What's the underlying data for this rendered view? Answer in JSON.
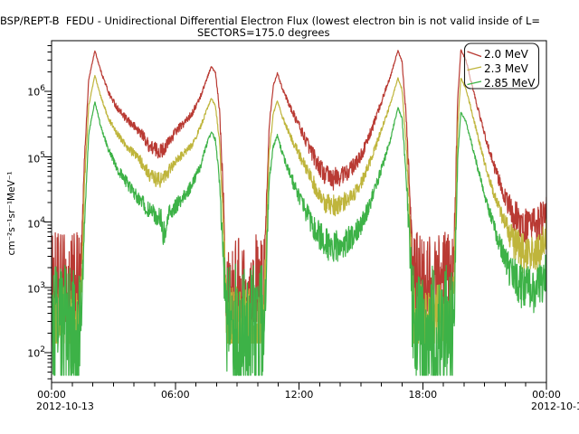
{
  "title": {
    "line1": "RBSP/REPT-B  FEDU - Unidirectional Differential Electron Flux (lowest electron bin is not valid inside of L=",
    "line2": "SECTORS=175.0 degrees"
  },
  "y_axis": {
    "unit_label": "cm⁻²s⁻¹sr⁻¹MeV⁻¹",
    "ticks": [
      {
        "base": "10",
        "exp": "6",
        "log": 6
      },
      {
        "base": "10",
        "exp": "5",
        "log": 5
      },
      {
        "base": "10",
        "exp": "4",
        "log": 4
      },
      {
        "base": "10",
        "exp": "3",
        "log": 3
      },
      {
        "base": "10",
        "exp": "2",
        "log": 2
      }
    ]
  },
  "x_axis": {
    "ticks": [
      {
        "label": "00:00",
        "hour": 0,
        "date": "2012-10-13"
      },
      {
        "label": "06:00",
        "hour": 6
      },
      {
        "label": "12:00",
        "hour": 12
      },
      {
        "label": "18:00",
        "hour": 18
      },
      {
        "label": "00:00",
        "hour": 24,
        "date": "2012-10-1"
      }
    ]
  },
  "legend": {
    "entries": [
      {
        "label": "2.0 MeV",
        "color": "#b93a33"
      },
      {
        "label": "2.3 MeV",
        "color": "#bfb53c"
      },
      {
        "label": "2.85 MeV",
        "color": "#3db247"
      }
    ]
  },
  "chart_data": {
    "type": "line",
    "title": "RBSP/REPT-B  FEDU - Unidirectional Differential Electron Flux (lowest electron bin is not valid inside of L=",
    "subtitle": "SECTORS=175.0 degrees",
    "ylabel": "cm⁻²s⁻¹sr⁻¹MeV⁻¹",
    "x_unit": "hours since 2012-10-13 00:00",
    "x_range": [
      0,
      24
    ],
    "x_major_ticks_hours": [
      0,
      6,
      12,
      18,
      24
    ],
    "x_minor_tick_step_hours": 1,
    "y_scale": "log10",
    "y_range": [
      35,
      6000000
    ],
    "y_decade_labels": [
      100,
      1000,
      10000,
      100000,
      1000000
    ],
    "grid": false,
    "legend_position": "top-right",
    "note": "keypoints are [time_hours, flux, noise_dex]; flux interpolated log-linearly between keypoints with +/- noise_dex jitter, clamped at series floor",
    "series": [
      {
        "name": "2.0 MeV",
        "color": "#b93a33",
        "floor": 300,
        "keypoints": [
          [
            0,
            700,
            1.0
          ],
          [
            1.35,
            700,
            1.0
          ],
          [
            1.45,
            3000,
            0.3
          ],
          [
            1.6,
            100000,
            0.06
          ],
          [
            1.8,
            1500000,
            0.02
          ],
          [
            2.1,
            4200000,
            0.01
          ],
          [
            2.4,
            2000000,
            0.02
          ],
          [
            2.8,
            900000,
            0.04
          ],
          [
            3.2,
            550000,
            0.05
          ],
          [
            3.6,
            380000,
            0.06
          ],
          [
            4.0,
            290000,
            0.07
          ],
          [
            4.4,
            220000,
            0.08
          ],
          [
            4.7,
            150000,
            0.1
          ],
          [
            5.0,
            130000,
            0.12
          ],
          [
            5.3,
            120000,
            0.12
          ],
          [
            5.6,
            150000,
            0.1
          ],
          [
            6.0,
            240000,
            0.07
          ],
          [
            6.4,
            320000,
            0.06
          ],
          [
            6.8,
            450000,
            0.05
          ],
          [
            7.2,
            800000,
            0.04
          ],
          [
            7.6,
            1800000,
            0.02
          ],
          [
            7.75,
            2400000,
            0.01
          ],
          [
            7.95,
            1900000,
            0.02
          ],
          [
            8.15,
            500000,
            0.05
          ],
          [
            8.35,
            20000,
            0.2
          ],
          [
            8.5,
            700,
            1.0
          ],
          [
            10.25,
            700,
            1.0
          ],
          [
            10.35,
            4000,
            0.3
          ],
          [
            10.55,
            300000,
            0.05
          ],
          [
            10.75,
            1200000,
            0.02
          ],
          [
            10.95,
            1900000,
            0.01
          ],
          [
            11.2,
            1100000,
            0.03
          ],
          [
            11.6,
            550000,
            0.05
          ],
          [
            12.0,
            300000,
            0.08
          ],
          [
            12.4,
            160000,
            0.1
          ],
          [
            12.8,
            90000,
            0.13
          ],
          [
            13.2,
            55000,
            0.16
          ],
          [
            13.6,
            45000,
            0.18
          ],
          [
            14.0,
            50000,
            0.15
          ],
          [
            14.4,
            60000,
            0.13
          ],
          [
            14.8,
            80000,
            0.11
          ],
          [
            15.2,
            140000,
            0.09
          ],
          [
            15.6,
            300000,
            0.07
          ],
          [
            16.0,
            700000,
            0.05
          ],
          [
            16.4,
            1600000,
            0.03
          ],
          [
            16.8,
            4200000,
            0.01
          ],
          [
            17.0,
            2800000,
            0.02
          ],
          [
            17.2,
            400000,
            0.05
          ],
          [
            17.4,
            20000,
            0.2
          ],
          [
            17.55,
            700,
            1.0
          ],
          [
            19.45,
            700,
            1.0
          ],
          [
            19.55,
            8000,
            0.3
          ],
          [
            19.7,
            800000,
            0.03
          ],
          [
            19.85,
            4300000,
            0.01
          ],
          [
            20.1,
            3000000,
            0.02
          ],
          [
            20.5,
            900000,
            0.03
          ],
          [
            21.0,
            220000,
            0.05
          ],
          [
            21.5,
            65000,
            0.08
          ],
          [
            22.0,
            24000,
            0.15
          ],
          [
            22.4,
            13000,
            0.25
          ],
          [
            22.9,
            8500,
            0.3
          ],
          [
            23.4,
            8000,
            0.3
          ],
          [
            23.8,
            11000,
            0.3
          ],
          [
            24,
            16000,
            0.28
          ]
        ]
      },
      {
        "name": "2.3 MeV",
        "color": "#bfb53c",
        "floor": 140,
        "keypoints": [
          [
            0,
            220,
            0.7
          ],
          [
            1.35,
            220,
            0.7
          ],
          [
            1.45,
            1200,
            0.3
          ],
          [
            1.6,
            40000,
            0.06
          ],
          [
            1.8,
            600000,
            0.02
          ],
          [
            2.1,
            1750000,
            0.01
          ],
          [
            2.4,
            800000,
            0.02
          ],
          [
            2.8,
            360000,
            0.04
          ],
          [
            3.2,
            220000,
            0.05
          ],
          [
            3.6,
            150000,
            0.06
          ],
          [
            4.0,
            110000,
            0.07
          ],
          [
            4.4,
            80000,
            0.09
          ],
          [
            4.7,
            55000,
            0.1
          ],
          [
            5.0,
            46000,
            0.12
          ],
          [
            5.3,
            43000,
            0.12
          ],
          [
            5.6,
            55000,
            0.1
          ],
          [
            6.0,
            85000,
            0.07
          ],
          [
            6.4,
            110000,
            0.06
          ],
          [
            6.8,
            150000,
            0.05
          ],
          [
            7.2,
            270000,
            0.04
          ],
          [
            7.6,
            600000,
            0.02
          ],
          [
            7.75,
            780000,
            0.01
          ],
          [
            7.95,
            600000,
            0.02
          ],
          [
            8.15,
            160000,
            0.05
          ],
          [
            8.35,
            7000,
            0.2
          ],
          [
            8.5,
            220,
            0.7
          ],
          [
            10.25,
            220,
            0.7
          ],
          [
            10.35,
            1500,
            0.3
          ],
          [
            10.55,
            110000,
            0.05
          ],
          [
            10.75,
            450000,
            0.02
          ],
          [
            10.95,
            720000,
            0.01
          ],
          [
            11.2,
            400000,
            0.03
          ],
          [
            11.6,
            200000,
            0.05
          ],
          [
            12.0,
            110000,
            0.08
          ],
          [
            12.4,
            60000,
            0.1
          ],
          [
            12.8,
            34000,
            0.13
          ],
          [
            13.2,
            21000,
            0.16
          ],
          [
            13.6,
            17000,
            0.18
          ],
          [
            14.0,
            19000,
            0.15
          ],
          [
            14.4,
            23000,
            0.13
          ],
          [
            14.8,
            30000,
            0.11
          ],
          [
            15.2,
            52000,
            0.09
          ],
          [
            15.6,
            110000,
            0.07
          ],
          [
            16.0,
            260000,
            0.05
          ],
          [
            16.4,
            600000,
            0.03
          ],
          [
            16.8,
            1600000,
            0.01
          ],
          [
            17.0,
            1050000,
            0.02
          ],
          [
            17.2,
            150000,
            0.05
          ],
          [
            17.4,
            7000,
            0.2
          ],
          [
            17.55,
            220,
            0.7
          ],
          [
            19.45,
            220,
            0.7
          ],
          [
            19.55,
            3000,
            0.3
          ],
          [
            19.7,
            300000,
            0.03
          ],
          [
            19.85,
            1600000,
            0.01
          ],
          [
            20.1,
            1100000,
            0.02
          ],
          [
            20.5,
            340000,
            0.03
          ],
          [
            21.0,
            80000,
            0.05
          ],
          [
            21.5,
            24000,
            0.08
          ],
          [
            22.0,
            9000,
            0.15
          ],
          [
            22.4,
            5000,
            0.25
          ],
          [
            22.9,
            3300,
            0.3
          ],
          [
            23.4,
            3100,
            0.3
          ],
          [
            23.8,
            4200,
            0.3
          ],
          [
            24,
            6000,
            0.28
          ]
        ]
      },
      {
        "name": "2.85 MeV",
        "color": "#3db247",
        "floor": 45,
        "keypoints": [
          [
            0,
            180,
            1.1
          ],
          [
            1.35,
            180,
            1.1
          ],
          [
            1.45,
            400,
            0.4
          ],
          [
            1.6,
            10000,
            0.08
          ],
          [
            1.8,
            220000,
            0.02
          ],
          [
            2.1,
            700000,
            0.01
          ],
          [
            2.4,
            280000,
            0.03
          ],
          [
            2.8,
            120000,
            0.05
          ],
          [
            3.2,
            65000,
            0.07
          ],
          [
            3.6,
            42000,
            0.09
          ],
          [
            4.0,
            28000,
            0.1
          ],
          [
            4.4,
            20000,
            0.12
          ],
          [
            4.7,
            15000,
            0.14
          ],
          [
            5.0,
            12500,
            0.15
          ],
          [
            5.3,
            11500,
            0.15
          ],
          [
            5.45,
            6000,
            0.22
          ],
          [
            5.6,
            12000,
            0.15
          ],
          [
            6.0,
            17000,
            0.12
          ],
          [
            6.4,
            24000,
            0.1
          ],
          [
            6.8,
            36000,
            0.09
          ],
          [
            7.2,
            70000,
            0.07
          ],
          [
            7.6,
            180000,
            0.03
          ],
          [
            7.75,
            240000,
            0.02
          ],
          [
            7.95,
            180000,
            0.03
          ],
          [
            8.15,
            40000,
            0.08
          ],
          [
            8.35,
            2000,
            0.3
          ],
          [
            8.5,
            180,
            1.1
          ],
          [
            10.25,
            180,
            1.1
          ],
          [
            10.35,
            500,
            0.4
          ],
          [
            10.55,
            40000,
            0.06
          ],
          [
            10.75,
            140000,
            0.03
          ],
          [
            10.95,
            210000,
            0.02
          ],
          [
            11.2,
            110000,
            0.06
          ],
          [
            11.6,
            50000,
            0.09
          ],
          [
            12.0,
            24000,
            0.12
          ],
          [
            12.4,
            13000,
            0.16
          ],
          [
            12.8,
            7500,
            0.2
          ],
          [
            13.2,
            5000,
            0.24
          ],
          [
            13.6,
            4000,
            0.26
          ],
          [
            14.0,
            4400,
            0.24
          ],
          [
            14.4,
            5200,
            0.22
          ],
          [
            14.8,
            7000,
            0.18
          ],
          [
            15.2,
            12000,
            0.14
          ],
          [
            15.6,
            26000,
            0.11
          ],
          [
            16.0,
            65000,
            0.08
          ],
          [
            16.4,
            170000,
            0.04
          ],
          [
            16.8,
            560000,
            0.01
          ],
          [
            17.0,
            380000,
            0.03
          ],
          [
            17.2,
            50000,
            0.08
          ],
          [
            17.4,
            2500,
            0.3
          ],
          [
            17.55,
            180,
            1.1
          ],
          [
            19.45,
            180,
            1.1
          ],
          [
            19.55,
            800,
            0.4
          ],
          [
            19.7,
            100000,
            0.04
          ],
          [
            19.85,
            480000,
            0.01
          ],
          [
            20.1,
            340000,
            0.02
          ],
          [
            20.5,
            110000,
            0.04
          ],
          [
            21.0,
            26000,
            0.07
          ],
          [
            21.5,
            7500,
            0.12
          ],
          [
            22.0,
            2600,
            0.22
          ],
          [
            22.4,
            1400,
            0.3
          ],
          [
            22.9,
            950,
            0.35
          ],
          [
            23.4,
            900,
            0.35
          ],
          [
            23.8,
            1200,
            0.33
          ],
          [
            24,
            1700,
            0.3
          ]
        ]
      }
    ]
  }
}
